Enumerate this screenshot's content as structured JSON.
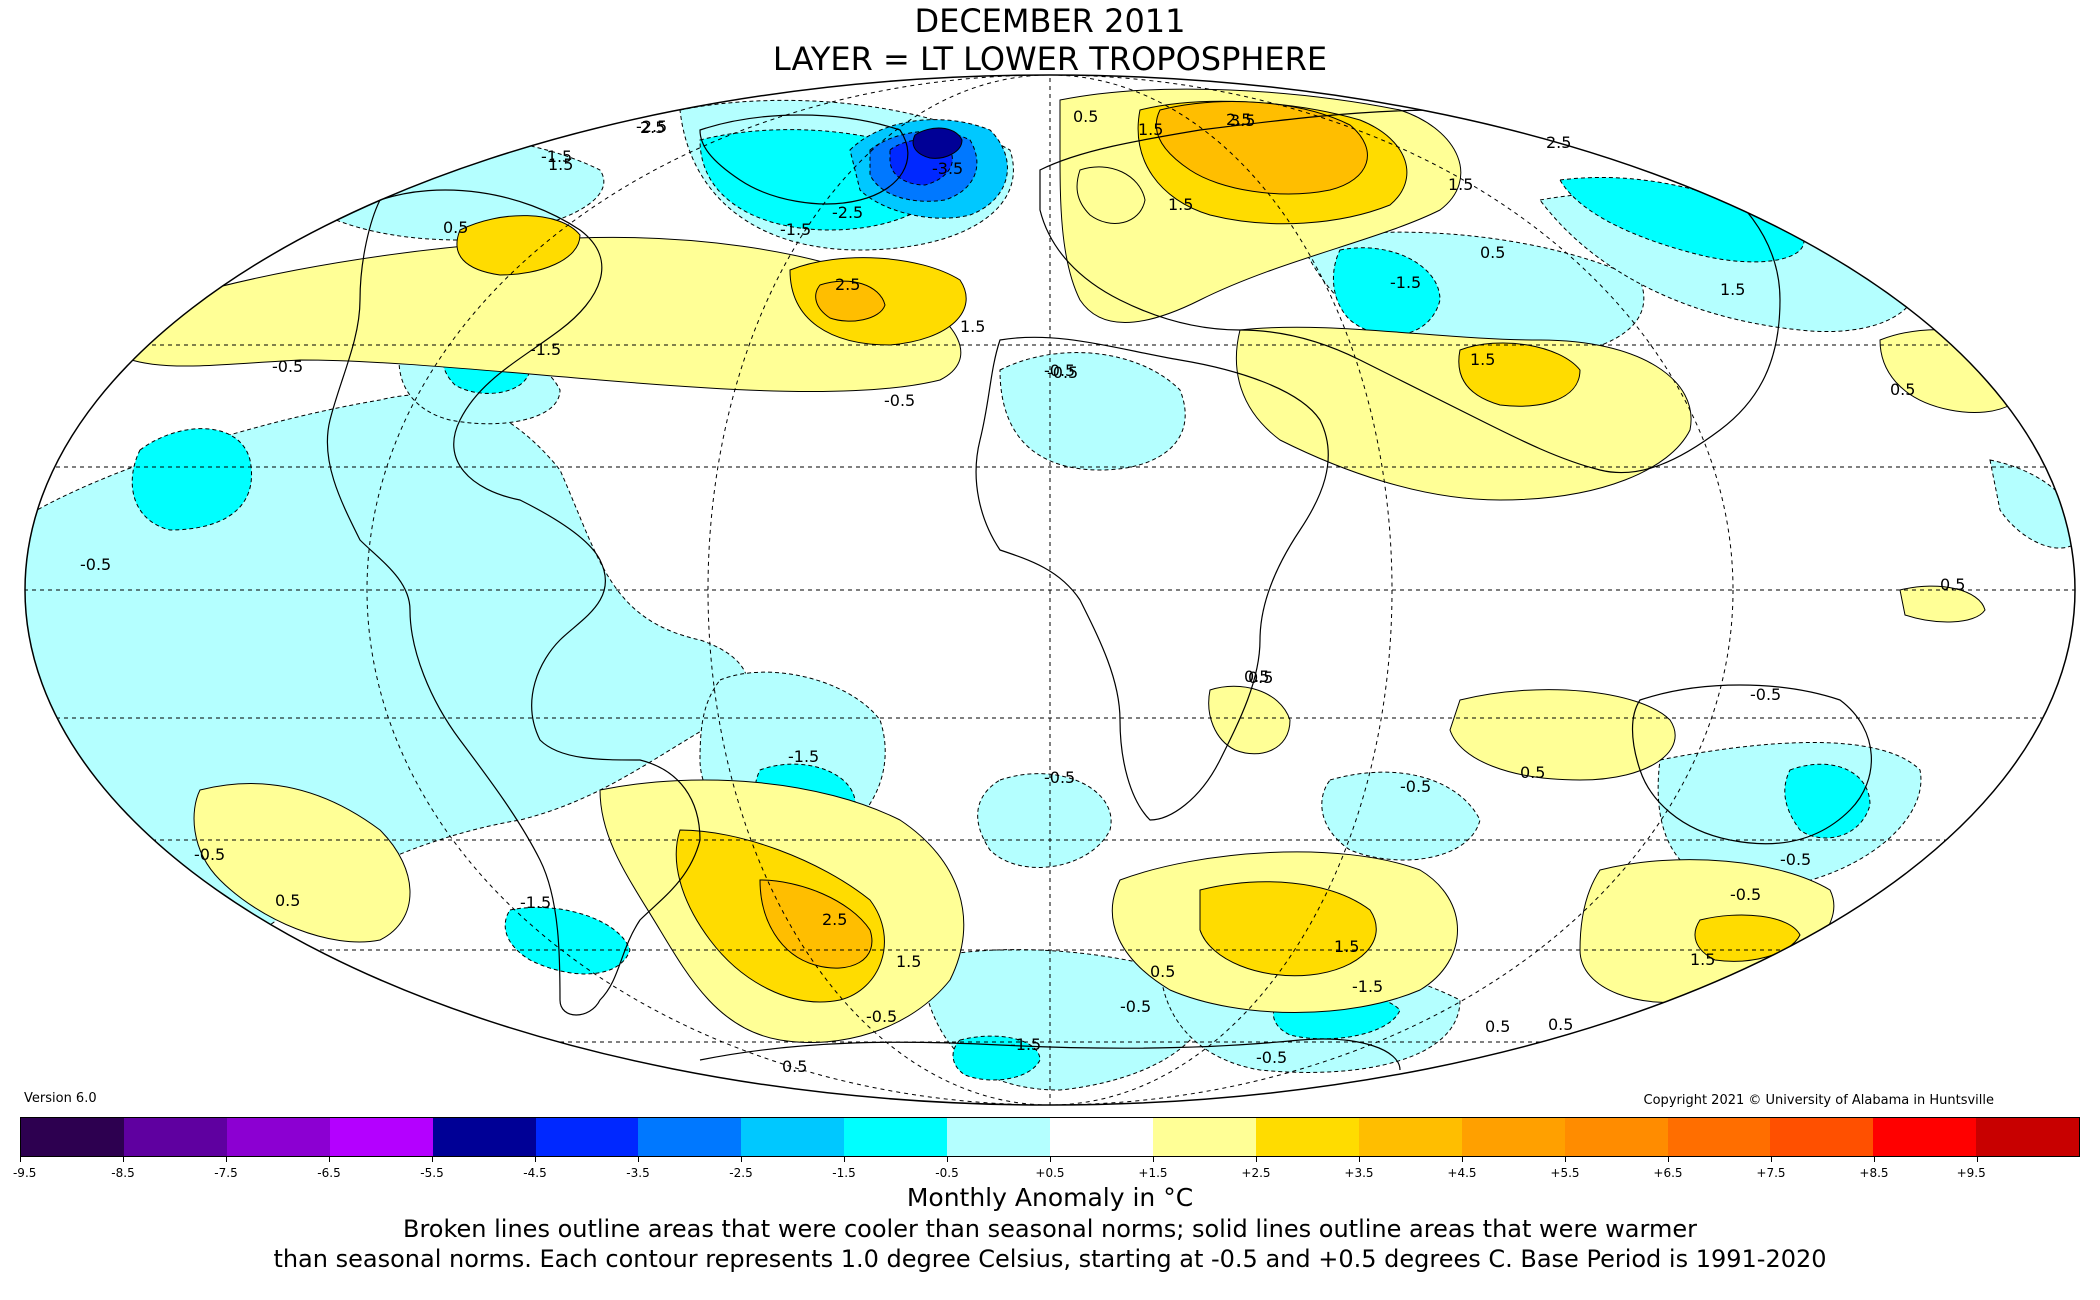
{
  "title": {
    "line1": "DECEMBER 2011",
    "line2": "LAYER = LT LOWER TROPOSPHERE"
  },
  "version": "Version 6.0",
  "copyright": "Copyright 2021 © University of Alabama in Huntsville",
  "colorbar": {
    "colors": [
      "#2d0050",
      "#5f00a0",
      "#8c00d2",
      "#b400ff",
      "#000096",
      "#0028ff",
      "#0078ff",
      "#00c8ff",
      "#00ffff",
      "#b4ffff",
      "#ffffff",
      "#ffff96",
      "#ffdc00",
      "#ffbe00",
      "#ffa000",
      "#ff8c00",
      "#ff6e00",
      "#ff5000",
      "#ff0000",
      "#c80000"
    ],
    "tick_labels": [
      "-9.5",
      "-8.5",
      "-7.5",
      "-6.5",
      "-5.5",
      "-4.5",
      "-3.5",
      "-2.5",
      "-1.5",
      "-0.5",
      "+0.5",
      "+1.5",
      "+2.5",
      "+3.5",
      "+4.5",
      "+5.5",
      "+6.5",
      "+7.5",
      "+8.5",
      "+9.5"
    ]
  },
  "unit_label": "Monthly Anomaly in °C",
  "note": {
    "line1": "Broken lines outline areas that were cooler than seasonal norms; solid lines outline areas that were warmer",
    "line2": "than seasonal norms. Each contour represents 1.0 degree Celsius, starting at -0.5 and +0.5 degrees C. Base Period is 1991-2020"
  },
  "contour_labels": {
    "l01": "2.5",
    "l02": "1.5",
    "l03": "0.5",
    "l04": "2.5",
    "l05": "1.5",
    "l06": "-0.5",
    "l07": "-1.5",
    "l08": "-0.5",
    "l09": "-1.5",
    "l10": "-0.5",
    "l11": "-2.5",
    "l12": "-3.5",
    "l13": "-1.5",
    "l14": "-2.5",
    "l15": "2.5",
    "l16": "1.5",
    "l17": "1.5",
    "l18": "0.5",
    "l19": "3.5",
    "l20": "1.5",
    "l21": "1.5",
    "l22": "0.5",
    "l23": "2.5",
    "l24": "-1.5",
    "l25": "1.5",
    "l26": "-0.5",
    "l27": "-0.5",
    "l28": "0.5",
    "l29": "0.5",
    "l30": "0.5",
    "l31": "-0.5",
    "l32": "-1.5",
    "l33": "-0.5",
    "l34": "0.5",
    "l35": "-1.5",
    "l36": "2.5",
    "l37": "1.5",
    "l38": "-0.5",
    "l39": "0.5",
    "l40": "1.5",
    "l41": "0.5",
    "l42": "-0.5",
    "l43": "-1.5",
    "l44": "-0.5",
    "l45": "-1.5",
    "l46": "-0.5",
    "l47": "0.5",
    "l48": "0.5",
    "l49": "-0.5",
    "l50": "-0.5",
    "l51": "1.5",
    "l52": "-0.5",
    "l53": "0.5",
    "l54": "0.5"
  }
}
